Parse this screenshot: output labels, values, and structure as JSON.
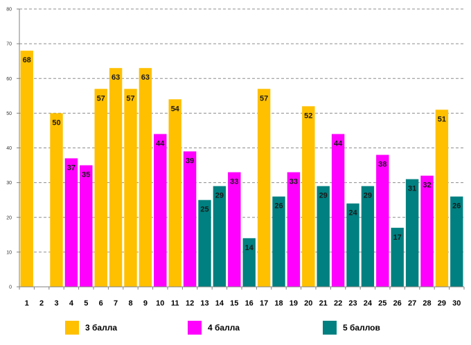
{
  "chart_data": {
    "type": "bar",
    "title": "",
    "xlabel": "",
    "ylabel": "",
    "ylim": [
      0,
      80
    ],
    "yticks": [
      0,
      10,
      20,
      30,
      40,
      50,
      60,
      70,
      80
    ],
    "grid": true,
    "categories": [
      "1",
      "2",
      "3",
      "4",
      "5",
      "6",
      "7",
      "8",
      "9",
      "10",
      "11",
      "12",
      "13",
      "14",
      "15",
      "16",
      "17",
      "18",
      "19",
      "20",
      "21",
      "22",
      "23",
      "24",
      "25",
      "26",
      "27",
      "28",
      "29",
      "30"
    ],
    "values": [
      68,
      null,
      50,
      37,
      35,
      57,
      63,
      57,
      63,
      44,
      54,
      39,
      25,
      29,
      33,
      14,
      57,
      26,
      33,
      52,
      29,
      44,
      24,
      29,
      38,
      17,
      31,
      32,
      51,
      26
    ],
    "groups": [
      "3 балла",
      "3 балла",
      "3 балла",
      "4 балла",
      "4 балла",
      "3 балла",
      "3 балла",
      "3 балла",
      "3 балла",
      "4 балла",
      "3 балла",
      "4 балла",
      "5 баллов",
      "5 баллов",
      "4 балла",
      "5 баллов",
      "3 балла",
      "5 баллов",
      "4 балла",
      "3 балла",
      "5 баллов",
      "4 балла",
      "5 баллов",
      "5 баллов",
      "4 балла",
      "5 баллов",
      "5 баллов",
      "4 балла",
      "3 балла",
      "5 баллов"
    ],
    "legend": [
      {
        "label": "3 балла",
        "color": "#FFC000"
      },
      {
        "label": "4 балла",
        "color": "#FF00FF"
      },
      {
        "label": "5 баллов",
        "color": "#008080"
      }
    ],
    "legend_position": "bottom"
  }
}
